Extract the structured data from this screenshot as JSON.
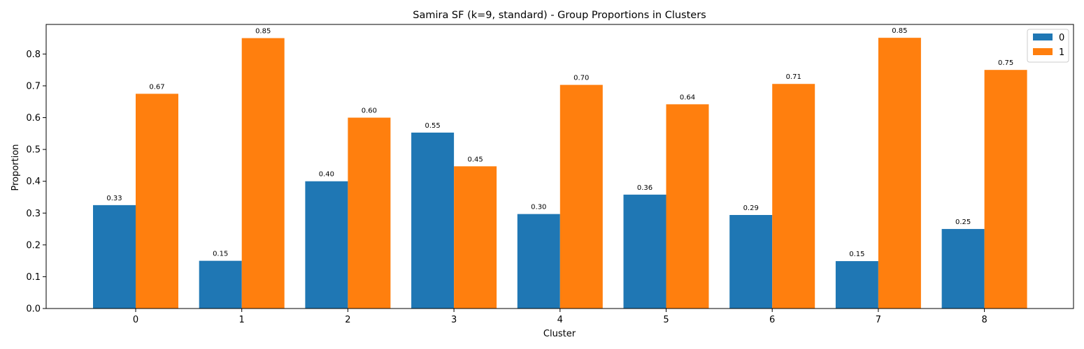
{
  "chart_data": {
    "type": "bar",
    "title": "Samira SF (k=9, standard) - Group Proportions in Clusters",
    "xlabel": "Cluster",
    "ylabel": "Proportion",
    "categories": [
      "0",
      "1",
      "2",
      "3",
      "4",
      "5",
      "6",
      "7",
      "8"
    ],
    "series": [
      {
        "name": "0",
        "color": "#1f77b4",
        "values": [
          0.325,
          0.15,
          0.4,
          0.553,
          0.297,
          0.358,
          0.294,
          0.149,
          0.25
        ],
        "labels": [
          "0.33",
          "0.15",
          "0.40",
          "0.55",
          "0.30",
          "0.36",
          "0.29",
          "0.15",
          "0.25"
        ]
      },
      {
        "name": "1",
        "color": "#ff7f0e",
        "values": [
          0.675,
          0.85,
          0.6,
          0.447,
          0.703,
          0.642,
          0.706,
          0.851,
          0.75
        ],
        "labels": [
          "0.67",
          "0.85",
          "0.60",
          "0.45",
          "0.70",
          "0.64",
          "0.71",
          "0.85",
          "0.75"
        ]
      }
    ],
    "ylim": [
      0,
      0.893
    ],
    "yticks": [
      "0.0",
      "0.1",
      "0.2",
      "0.3",
      "0.4",
      "0.5",
      "0.6",
      "0.7",
      "0.8"
    ],
    "legend": "top-right",
    "grid": false
  }
}
